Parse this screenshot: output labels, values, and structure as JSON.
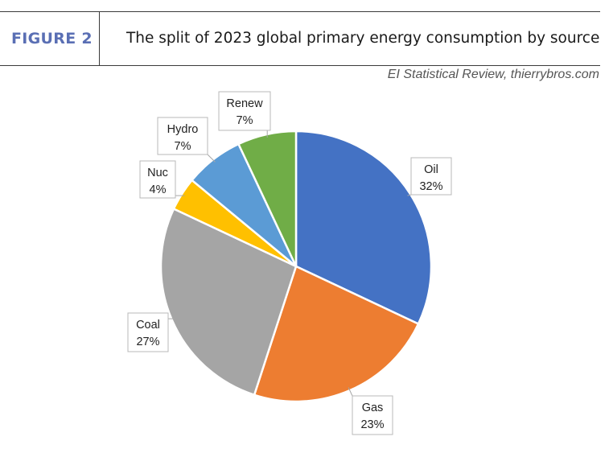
{
  "header": {
    "figure_label": "FIGURE 2",
    "title": "The split of 2023 global primary energy consumption by source",
    "source": "EI Statistical Review, thierrybros.com"
  },
  "colors": {
    "figure_label": "#5a6fb4",
    "header_rule": "#3a3a3a"
  },
  "chart_data": {
    "type": "pie",
    "title": "The split of 2023 global primary energy consumption by source",
    "start_angle": "12 o'clock, clockwise",
    "slices": [
      {
        "label": "Oil",
        "value": 32,
        "display": "32%",
        "color": "#4472c4"
      },
      {
        "label": "Gas",
        "value": 23,
        "display": "23%",
        "color": "#ed7d31"
      },
      {
        "label": "Coal",
        "value": 27,
        "display": "27%",
        "color": "#a5a5a5"
      },
      {
        "label": "Nuc",
        "value": 4,
        "display": "4%",
        "color": "#ffc000"
      },
      {
        "label": "Hydro",
        "value": 7,
        "display": "7%",
        "color": "#5b9bd5"
      },
      {
        "label": "Renew",
        "value": 7,
        "display": "7%",
        "color": "#70ad47"
      }
    ]
  }
}
